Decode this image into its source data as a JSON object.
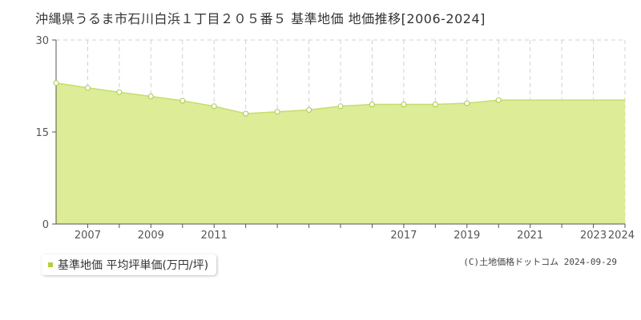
{
  "title": "沖縄県うるま市石川白浜１丁目２０５番５ 基準地価 地価推移[2006-2024]",
  "legend": {
    "label": "基準地価 平均坪単価(万円/坪)"
  },
  "credit": "(C)土地価格ドットコム 2024-09-29",
  "colors": {
    "area": "#dcec97",
    "line": "#c5de6a",
    "marker_stroke": "#a9c94a",
    "grid": "#d0d0d0",
    "swatch": "#b5cf3a"
  },
  "chart_data": {
    "type": "area",
    "title": "沖縄県うるま市石川白浜１丁目２０５番５ 基準地価 地価推移[2006-2024]",
    "xlabel": "",
    "ylabel": "",
    "ylim": [
      0,
      30
    ],
    "yticks": [
      "0",
      "15",
      "30"
    ],
    "xlim": [
      2006,
      2024
    ],
    "xticks": [
      "2007",
      "2009",
      "2011",
      "2017",
      "2019",
      "2021",
      "2023",
      "2024"
    ],
    "grid": true,
    "legend_position": "bottom-left",
    "series": [
      {
        "name": "基準地価 平均坪単価(万円/坪)",
        "x": [
          2006,
          2007,
          2008,
          2009,
          2010,
          2011,
          2012,
          2013,
          2014,
          2015,
          2016,
          2017,
          2018,
          2019,
          2020
        ],
        "values": [
          23.0,
          22.2,
          21.5,
          20.8,
          20.1,
          19.2,
          18.0,
          18.3,
          18.6,
          19.2,
          19.5,
          19.5,
          19.5,
          19.7,
          20.2
        ]
      }
    ]
  }
}
